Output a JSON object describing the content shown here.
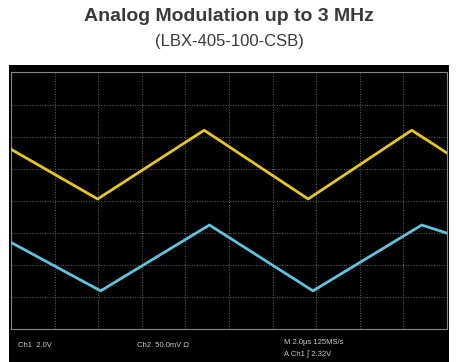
{
  "chart_data": {
    "type": "line",
    "title": "Analog Modulation up to 3 MHz",
    "subtitle": "(LBX-405-100-CSB)",
    "series": [
      {
        "name": "Ch1",
        "color": "#e6c81c",
        "x": [
          0,
          1.98,
          4.43,
          6.82,
          9.2,
          10
        ],
        "values": [
          1.6,
          0.06,
          2.2,
          0.06,
          2.2,
          1.5
        ]
      },
      {
        "name": "Ch2",
        "color": "#5ec4de",
        "x": [
          0,
          2.05,
          4.55,
          6.93,
          9.43,
          10
        ],
        "values": [
          -1.3,
          -2.8,
          -0.75,
          -2.8,
          -0.75,
          -1.0
        ]
      }
    ],
    "xlim": [
      0,
      10
    ],
    "ylim": [
      -4,
      4
    ],
    "xticks": [
      0,
      1,
      2,
      3,
      4,
      5,
      6,
      7,
      8,
      9,
      10
    ],
    "yticks": [
      -4,
      -3,
      -2,
      -1,
      0,
      1,
      2,
      3,
      4
    ],
    "grid": true,
    "tick_labels": false,
    "annotations": [
      "Ch1  2.0V",
      "Ch2  50.0mV Ω",
      "M 2.0μs 125MS/s",
      "A Ch1 ∫ 2.32V"
    ]
  }
}
